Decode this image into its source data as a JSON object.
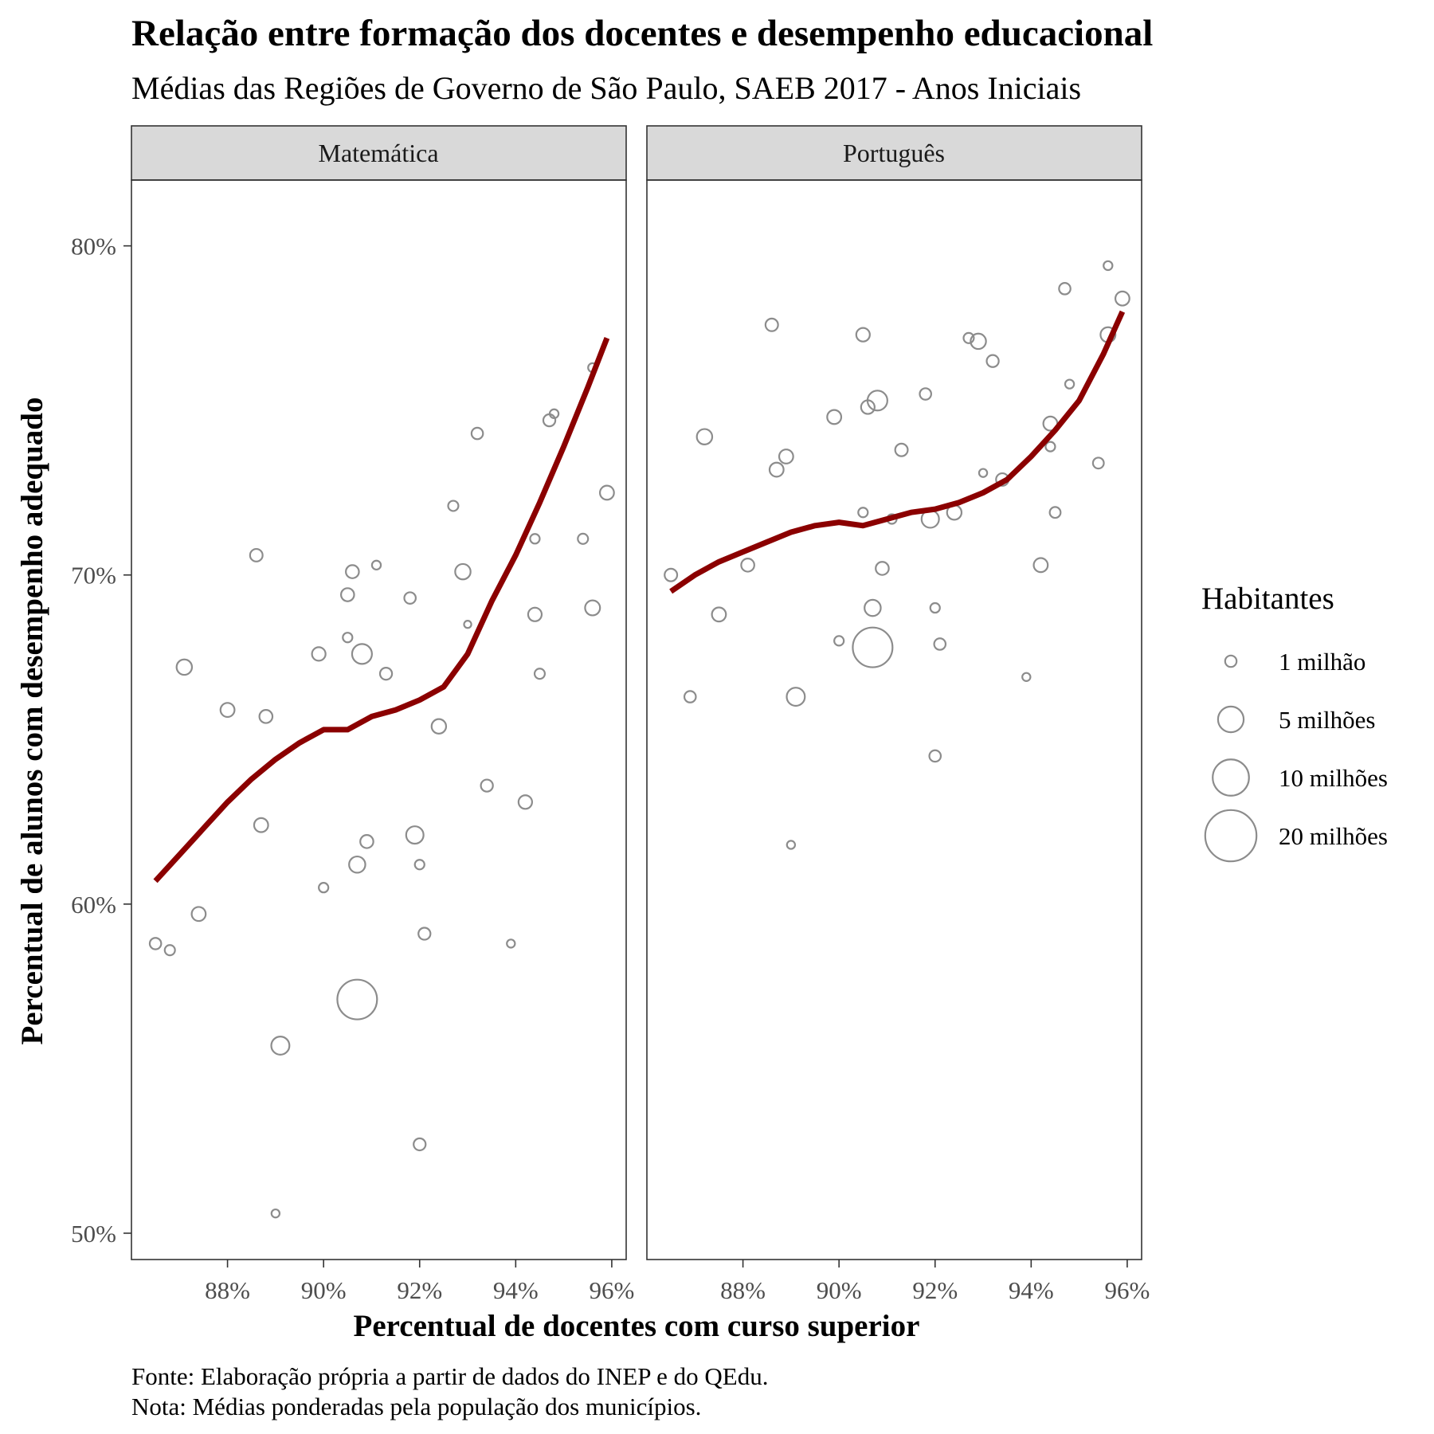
{
  "chart_data": {
    "type": "scatter",
    "title": "Relação entre formação dos docentes e desempenho educacional",
    "subtitle": "Médias  das Regiões de Governo de São Paulo, SAEB 2017 - Anos Iniciais",
    "xlabel": "Percentual de docentes com curso superior",
    "ylabel": "Percentual de alunos com desempenho adequado",
    "xlim": [
      86.0,
      96.3
    ],
    "ylim": [
      49.2,
      82.0
    ],
    "x_ticks": [
      88,
      90,
      92,
      94,
      96
    ],
    "x_tick_labels": [
      "88%",
      "90%",
      "92%",
      "94%",
      "96%"
    ],
    "y_ticks": [
      50,
      60,
      70,
      80
    ],
    "y_tick_labels": [
      "50%",
      "60%",
      "70%",
      "80%"
    ],
    "grid": false,
    "size_legend": {
      "title": "Habitantes",
      "position": "right",
      "entries": [
        {
          "label": "1 milhão",
          "value": 1
        },
        {
          "label": "5 milhões",
          "value": 5
        },
        {
          "label": "10 milhões",
          "value": 10
        },
        {
          "label": "20 milhões",
          "value": 20
        }
      ]
    },
    "panels": [
      {
        "name": "Matemática",
        "points": [
          {
            "x": 86.5,
            "y": 58.8,
            "pop": 1.0
          },
          {
            "x": 86.8,
            "y": 58.6,
            "pop": 0.8
          },
          {
            "x": 87.1,
            "y": 67.2,
            "pop": 1.8
          },
          {
            "x": 87.4,
            "y": 59.7,
            "pop": 1.5
          },
          {
            "x": 88.0,
            "y": 65.9,
            "pop": 1.5
          },
          {
            "x": 88.6,
            "y": 70.6,
            "pop": 1.2
          },
          {
            "x": 88.7,
            "y": 62.4,
            "pop": 1.5
          },
          {
            "x": 88.8,
            "y": 65.7,
            "pop": 1.3
          },
          {
            "x": 89.0,
            "y": 50.6,
            "pop": 0.5
          },
          {
            "x": 89.1,
            "y": 55.7,
            "pop": 2.5
          },
          {
            "x": 89.9,
            "y": 67.6,
            "pop": 1.4
          },
          {
            "x": 90.0,
            "y": 60.5,
            "pop": 0.7
          },
          {
            "x": 90.5,
            "y": 69.4,
            "pop": 1.3
          },
          {
            "x": 90.5,
            "y": 68.1,
            "pop": 0.7
          },
          {
            "x": 90.6,
            "y": 70.1,
            "pop": 1.3
          },
          {
            "x": 90.7,
            "y": 61.2,
            "pop": 2.0
          },
          {
            "x": 90.7,
            "y": 57.1,
            "pop": 12.0
          },
          {
            "x": 90.8,
            "y": 67.6,
            "pop": 3.0
          },
          {
            "x": 90.9,
            "y": 61.9,
            "pop": 1.3
          },
          {
            "x": 91.1,
            "y": 70.3,
            "pop": 0.6
          },
          {
            "x": 91.3,
            "y": 67.0,
            "pop": 1.1
          },
          {
            "x": 91.8,
            "y": 69.3,
            "pop": 1.0
          },
          {
            "x": 91.9,
            "y": 62.1,
            "pop": 2.3
          },
          {
            "x": 92.0,
            "y": 61.2,
            "pop": 0.7
          },
          {
            "x": 92.0,
            "y": 52.7,
            "pop": 1.1
          },
          {
            "x": 92.1,
            "y": 59.1,
            "pop": 1.1
          },
          {
            "x": 92.4,
            "y": 65.4,
            "pop": 1.6
          },
          {
            "x": 92.7,
            "y": 72.1,
            "pop": 0.8
          },
          {
            "x": 92.9,
            "y": 70.1,
            "pop": 1.8
          },
          {
            "x": 93.0,
            "y": 68.5,
            "pop": 0.4
          },
          {
            "x": 93.2,
            "y": 74.3,
            "pop": 1.0
          },
          {
            "x": 93.4,
            "y": 63.6,
            "pop": 1.1
          },
          {
            "x": 93.9,
            "y": 58.8,
            "pop": 0.5
          },
          {
            "x": 94.2,
            "y": 63.1,
            "pop": 1.4
          },
          {
            "x": 94.4,
            "y": 68.8,
            "pop": 1.4
          },
          {
            "x": 94.4,
            "y": 71.1,
            "pop": 0.7
          },
          {
            "x": 94.5,
            "y": 67.0,
            "pop": 0.8
          },
          {
            "x": 94.7,
            "y": 74.7,
            "pop": 1.1
          },
          {
            "x": 94.8,
            "y": 74.9,
            "pop": 0.6
          },
          {
            "x": 95.4,
            "y": 71.1,
            "pop": 0.8
          },
          {
            "x": 95.6,
            "y": 76.3,
            "pop": 0.6
          },
          {
            "x": 95.6,
            "y": 69.0,
            "pop": 1.7
          },
          {
            "x": 95.9,
            "y": 72.5,
            "pop": 1.5
          }
        ],
        "smooth": [
          {
            "x": 86.5,
            "y": 60.7
          },
          {
            "x": 87.0,
            "y": 61.5
          },
          {
            "x": 87.5,
            "y": 62.3
          },
          {
            "x": 88.0,
            "y": 63.1
          },
          {
            "x": 88.5,
            "y": 63.8
          },
          {
            "x": 89.0,
            "y": 64.4
          },
          {
            "x": 89.5,
            "y": 64.9
          },
          {
            "x": 90.0,
            "y": 65.3
          },
          {
            "x": 90.5,
            "y": 65.3
          },
          {
            "x": 91.0,
            "y": 65.7
          },
          {
            "x": 91.5,
            "y": 65.9
          },
          {
            "x": 92.0,
            "y": 66.2
          },
          {
            "x": 92.5,
            "y": 66.6
          },
          {
            "x": 93.0,
            "y": 67.6
          },
          {
            "x": 93.5,
            "y": 69.2
          },
          {
            "x": 94.0,
            "y": 70.6
          },
          {
            "x": 94.5,
            "y": 72.2
          },
          {
            "x": 95.0,
            "y": 73.9
          },
          {
            "x": 95.5,
            "y": 75.7
          },
          {
            "x": 95.9,
            "y": 77.2
          }
        ]
      },
      {
        "name": "Português",
        "points": [
          {
            "x": 86.5,
            "y": 70.0,
            "pop": 1.2
          },
          {
            "x": 86.9,
            "y": 66.3,
            "pop": 1.0
          },
          {
            "x": 87.2,
            "y": 74.2,
            "pop": 1.8
          },
          {
            "x": 87.5,
            "y": 68.8,
            "pop": 1.5
          },
          {
            "x": 88.1,
            "y": 70.3,
            "pop": 1.3
          },
          {
            "x": 88.6,
            "y": 77.6,
            "pop": 1.2
          },
          {
            "x": 88.7,
            "y": 73.2,
            "pop": 1.5
          },
          {
            "x": 88.9,
            "y": 73.6,
            "pop": 1.5
          },
          {
            "x": 89.0,
            "y": 61.8,
            "pop": 0.5
          },
          {
            "x": 89.1,
            "y": 66.3,
            "pop": 2.5
          },
          {
            "x": 89.9,
            "y": 74.8,
            "pop": 1.5
          },
          {
            "x": 90.0,
            "y": 68.0,
            "pop": 0.7
          },
          {
            "x": 90.5,
            "y": 77.3,
            "pop": 1.4
          },
          {
            "x": 90.5,
            "y": 71.9,
            "pop": 0.7
          },
          {
            "x": 90.6,
            "y": 75.1,
            "pop": 1.4
          },
          {
            "x": 90.7,
            "y": 69.0,
            "pop": 2.0
          },
          {
            "x": 90.7,
            "y": 67.8,
            "pop": 12.0
          },
          {
            "x": 90.8,
            "y": 75.3,
            "pop": 3.0
          },
          {
            "x": 90.9,
            "y": 70.2,
            "pop": 1.3
          },
          {
            "x": 91.1,
            "y": 71.7,
            "pop": 0.7
          },
          {
            "x": 91.3,
            "y": 73.8,
            "pop": 1.2
          },
          {
            "x": 91.8,
            "y": 75.5,
            "pop": 1.0
          },
          {
            "x": 91.9,
            "y": 71.7,
            "pop": 2.3
          },
          {
            "x": 92.0,
            "y": 69.0,
            "pop": 0.7
          },
          {
            "x": 92.0,
            "y": 64.5,
            "pop": 1.0
          },
          {
            "x": 92.1,
            "y": 67.9,
            "pop": 1.0
          },
          {
            "x": 92.4,
            "y": 71.9,
            "pop": 1.6
          },
          {
            "x": 92.7,
            "y": 77.2,
            "pop": 0.8
          },
          {
            "x": 92.9,
            "y": 77.1,
            "pop": 1.8
          },
          {
            "x": 93.0,
            "y": 73.1,
            "pop": 0.5
          },
          {
            "x": 93.2,
            "y": 76.5,
            "pop": 1.1
          },
          {
            "x": 93.4,
            "y": 72.9,
            "pop": 1.2
          },
          {
            "x": 93.9,
            "y": 66.9,
            "pop": 0.5
          },
          {
            "x": 94.2,
            "y": 70.3,
            "pop": 1.5
          },
          {
            "x": 94.4,
            "y": 74.6,
            "pop": 1.5
          },
          {
            "x": 94.4,
            "y": 73.9,
            "pop": 0.7
          },
          {
            "x": 94.5,
            "y": 71.9,
            "pop": 0.9
          },
          {
            "x": 94.7,
            "y": 78.7,
            "pop": 1.0
          },
          {
            "x": 94.8,
            "y": 75.8,
            "pop": 0.6
          },
          {
            "x": 95.4,
            "y": 73.4,
            "pop": 0.9
          },
          {
            "x": 95.6,
            "y": 79.4,
            "pop": 0.6
          },
          {
            "x": 95.6,
            "y": 77.3,
            "pop": 1.7
          },
          {
            "x": 95.9,
            "y": 78.4,
            "pop": 1.5
          }
        ],
        "smooth": [
          {
            "x": 86.5,
            "y": 69.5
          },
          {
            "x": 87.0,
            "y": 70.0
          },
          {
            "x": 87.5,
            "y": 70.4
          },
          {
            "x": 88.0,
            "y": 70.7
          },
          {
            "x": 88.5,
            "y": 71.0
          },
          {
            "x": 89.0,
            "y": 71.3
          },
          {
            "x": 89.5,
            "y": 71.5
          },
          {
            "x": 90.0,
            "y": 71.6
          },
          {
            "x": 90.5,
            "y": 71.5
          },
          {
            "x": 91.0,
            "y": 71.7
          },
          {
            "x": 91.5,
            "y": 71.9
          },
          {
            "x": 92.0,
            "y": 72.0
          },
          {
            "x": 92.5,
            "y": 72.2
          },
          {
            "x": 93.0,
            "y": 72.5
          },
          {
            "x": 93.5,
            "y": 72.9
          },
          {
            "x": 94.0,
            "y": 73.6
          },
          {
            "x": 94.5,
            "y": 74.4
          },
          {
            "x": 95.0,
            "y": 75.3
          },
          {
            "x": 95.5,
            "y": 76.7
          },
          {
            "x": 95.9,
            "y": 78.0
          }
        ]
      }
    ],
    "colors": {
      "points": "#8c8c8c",
      "smooth_line": "#8b0000",
      "strip_background": "#d9d9d9",
      "panel_border": "#333333"
    },
    "caption_lines": [
      "Fonte: Elaboração própria a partir de dados do INEP e do QEdu.",
      "Nota: Médias ponderadas pela população dos municípios."
    ]
  }
}
